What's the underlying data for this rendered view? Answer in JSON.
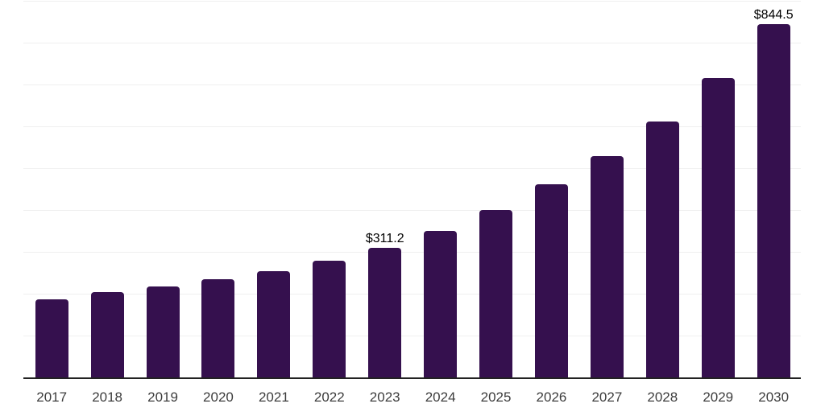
{
  "chart_data": {
    "type": "bar",
    "title": "",
    "subtitle": "",
    "xlabel": "",
    "ylabel": "",
    "categories": [
      "2017",
      "2018",
      "2019",
      "2020",
      "2021",
      "2022",
      "2023",
      "2024",
      "2025",
      "2026",
      "2027",
      "2028",
      "2029",
      "2030"
    ],
    "values": [
      187.7,
      205.0,
      219.0,
      235.7,
      256.1,
      279.9,
      311.2,
      352.2,
      402.1,
      462.4,
      530.2,
      613.4,
      717.1,
      844.5
    ],
    "data_labels": {
      "2023": "$311.2",
      "2030": "$844.5"
    },
    "ylim": [
      0,
      900
    ],
    "gridline_step": 100,
    "grid": "horizontal-only",
    "legend_position": "none",
    "y_axis_tick_labels_visible": false,
    "colors": {
      "bar": "#35104e",
      "gridline": "#f0f0f0",
      "axis_line": "#222222",
      "tick_label": "#3d3d3d",
      "value_label": "#000000",
      "background": "#ffffff"
    }
  }
}
